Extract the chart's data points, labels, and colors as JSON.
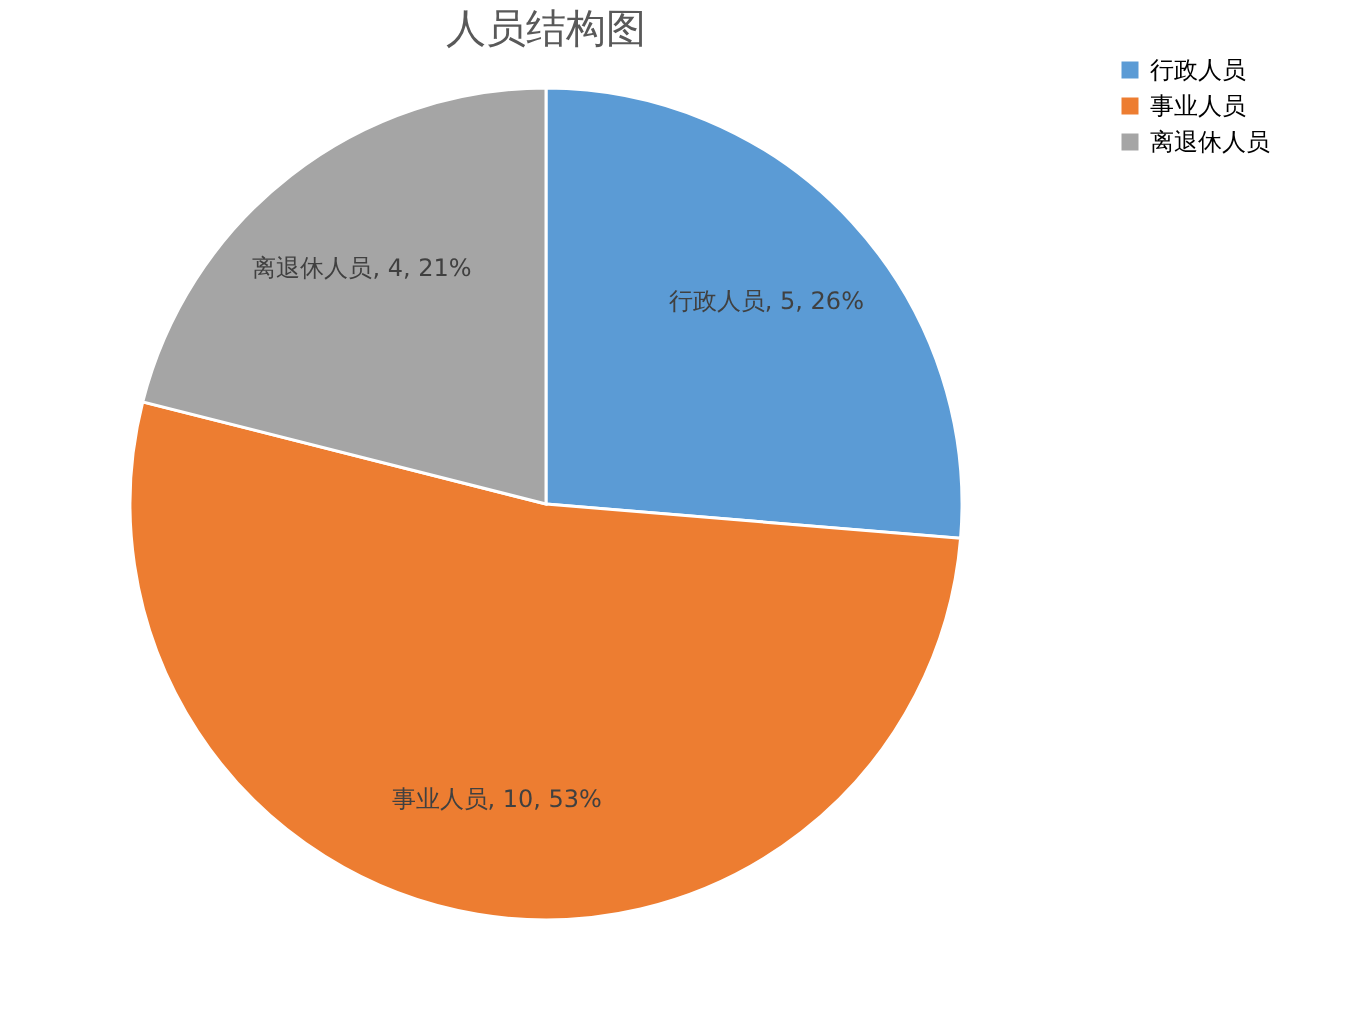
{
  "chart_data": {
    "type": "pie",
    "title": "人员结构图",
    "categories": [
      "行政人员",
      "事业人员",
      "离退休人员"
    ],
    "values": [
      5,
      10,
      4
    ],
    "colors": [
      "#5b9bd5",
      "#ed7d31",
      "#a5a5a5"
    ],
    "value_labels": [
      "行政人员, 5, 26%",
      "事业人员, 10, 53%",
      "离退休人员, 4, 21%"
    ],
    "legend": "right"
  }
}
